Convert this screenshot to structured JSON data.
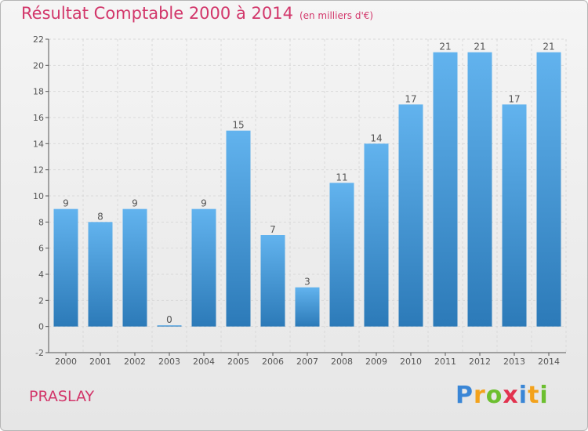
{
  "title": "Résultat Comptable 2000 à 2014",
  "subtitle": "(en milliers d'€)",
  "place_name": "PRASLAY",
  "logo": {
    "letters": [
      "P",
      "r",
      "o",
      "x",
      "i",
      "t",
      "i"
    ],
    "colors": [
      "#3a86d6",
      "#f3a21c",
      "#6cbf2f",
      "#e2334f",
      "#3a86d6",
      "#f3a21c",
      "#6cbf2f"
    ]
  },
  "colors": {
    "bar_top": "#62b3ee",
    "bar_bottom": "#2c7ab8",
    "title": "#d2366a",
    "grid": "#d9d9d9"
  },
  "chart_data": {
    "type": "bar",
    "categories": [
      "2000",
      "2001",
      "2002",
      "2003",
      "2004",
      "2005",
      "2006",
      "2007",
      "2008",
      "2009",
      "2010",
      "2011",
      "2012",
      "2013",
      "2014"
    ],
    "values": [
      9,
      8,
      9,
      0,
      9,
      15,
      7,
      3,
      11,
      14,
      17,
      21,
      21,
      17,
      21
    ],
    "title": "Résultat Comptable 2000 à 2014",
    "xlabel": "",
    "ylabel": "",
    "ylim": [
      -2,
      22
    ],
    "yticks": [
      -2,
      0,
      2,
      4,
      6,
      8,
      10,
      12,
      14,
      16,
      18,
      20,
      22
    ],
    "grid": true
  }
}
